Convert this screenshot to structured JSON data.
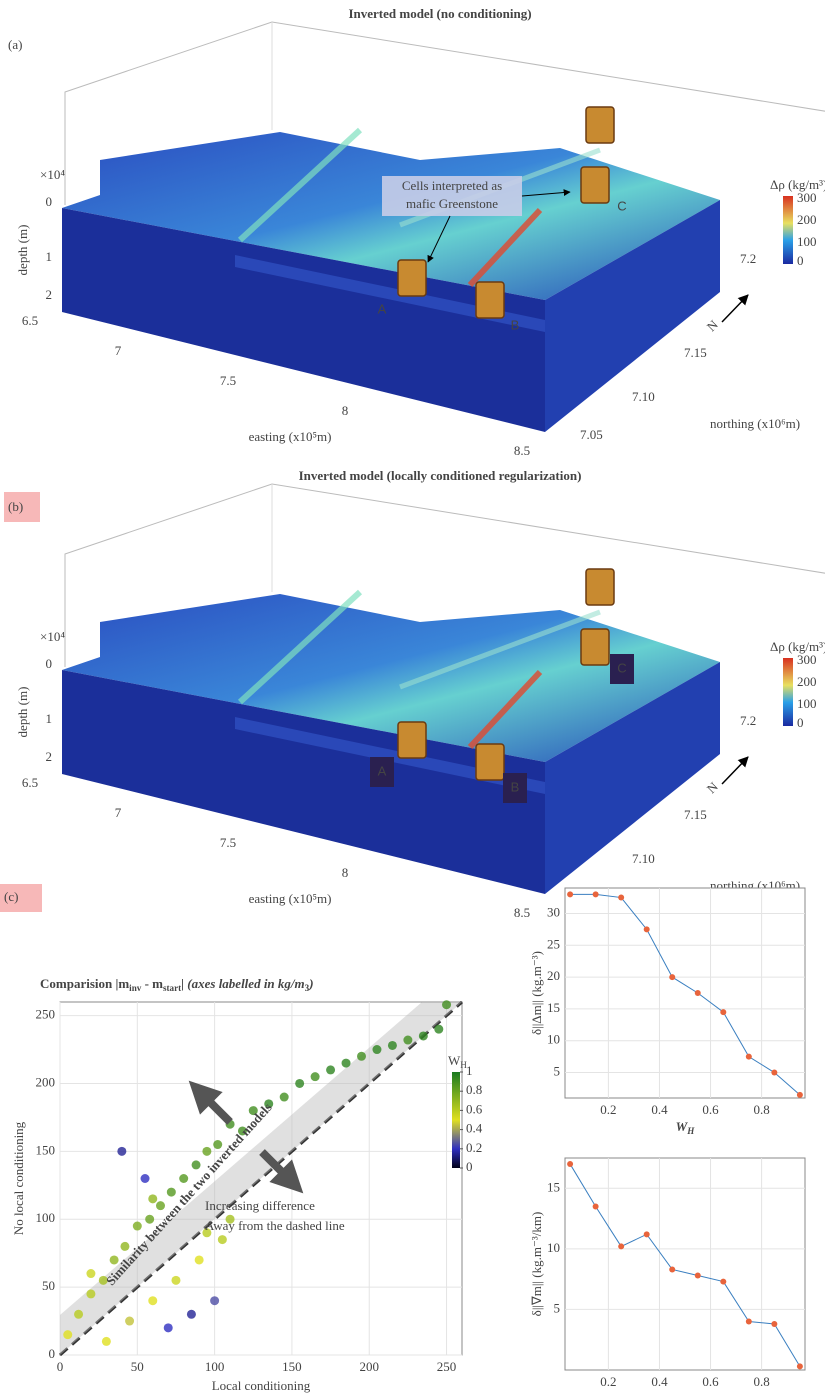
{
  "model_panels": [
    {
      "label": "(a)",
      "label_highlight": false,
      "title": "Inverted model (no conditioning)",
      "exponent": "×10⁴",
      "depth_label": "depth (m)",
      "depth_ticks": [
        "0",
        "1",
        "2"
      ],
      "easting_label": "easting (x10⁵m)",
      "easting_ticks": [
        "6.5",
        "7",
        "7.5",
        "8",
        "8.5"
      ],
      "northing_label": "northing (x10⁶m)",
      "northing_ticks": [
        "7.05",
        "7.10",
        "7.15",
        "7.2"
      ],
      "colorbar_label": "Δρ (kg/m³)",
      "colorbar_ticks": [
        "300",
        "200",
        "100",
        "0"
      ],
      "points": [
        "A",
        "B",
        "C"
      ],
      "letter_box": false,
      "north": "N",
      "annotation": [
        "Cells interpreted as",
        "mafic Greenstone"
      ]
    },
    {
      "label": "(b)",
      "label_highlight": true,
      "title": "Inverted model (locally conditioned regularization)",
      "exponent": "×10⁴",
      "depth_label": "depth (m)",
      "depth_ticks": [
        "0",
        "1",
        "2"
      ],
      "easting_label": "easting (x10⁵m)",
      "easting_ticks": [
        "6.5",
        "7",
        "7.5",
        "8",
        "8.5"
      ],
      "northing_label": "northing (x10⁶m)",
      "northing_ticks": [
        "7.05",
        "7.10",
        "7.15",
        "7.2"
      ],
      "colorbar_label": "Δρ (kg/m³)",
      "colorbar_ticks": [
        "300",
        "200",
        "100",
        "0"
      ],
      "points": [
        "A",
        "B",
        "C"
      ],
      "letter_box": true,
      "north": "N"
    }
  ],
  "chart_data": [
    {
      "type": "scatter",
      "label": "(c)",
      "label_highlight": true,
      "title_parts": [
        "Comparision  |m",
        "inv",
        " - m",
        "start",
        "|  (axes labelled in kg/m",
        "3",
        ")"
      ],
      "xlabel": "Local conditioning",
      "ylabel": "No local conditioning",
      "x": [
        5,
        12,
        20,
        28,
        35,
        42,
        50,
        58,
        65,
        72,
        80,
        88,
        95,
        102,
        110,
        118,
        125,
        135,
        145,
        155,
        165,
        175,
        185,
        195,
        205,
        215,
        225,
        235,
        245,
        30,
        45,
        60,
        75,
        90,
        105,
        40,
        55,
        70,
        85,
        100,
        20,
        60,
        95,
        110,
        250
      ],
      "values": [
        15,
        30,
        45,
        55,
        70,
        80,
        95,
        100,
        110,
        120,
        130,
        140,
        150,
        155,
        170,
        165,
        180,
        185,
        190,
        200,
        205,
        210,
        215,
        220,
        225,
        228,
        232,
        235,
        240,
        10,
        25,
        40,
        55,
        70,
        85,
        150,
        130,
        20,
        30,
        40,
        60,
        115,
        90,
        100,
        258
      ],
      "color_values": [
        0.5,
        0.6,
        0.6,
        0.65,
        0.7,
        0.7,
        0.75,
        0.8,
        0.8,
        0.85,
        0.85,
        0.9,
        0.8,
        0.85,
        0.9,
        0.9,
        0.9,
        0.95,
        0.9,
        0.95,
        0.9,
        0.95,
        0.95,
        0.9,
        0.95,
        0.95,
        0.9,
        0.95,
        0.95,
        0.5,
        0.45,
        0.5,
        0.55,
        0.5,
        0.6,
        0.15,
        0.2,
        0.2,
        0.15,
        0.25,
        0.55,
        0.7,
        0.6,
        0.65,
        0.9
      ],
      "xlim": [
        0,
        260
      ],
      "ylim": [
        0,
        260
      ],
      "xticks": [
        0,
        50,
        100,
        150,
        200,
        250
      ],
      "yticks": [
        0,
        50,
        100,
        150,
        200,
        250
      ],
      "grid": true,
      "clim": [
        0,
        1
      ],
      "cticks": [
        0,
        0.2,
        0.4,
        0.6,
        0.8,
        1
      ],
      "colorbar_label": [
        "W",
        "H"
      ],
      "annotations": [
        "Similarity between the two inverted models",
        "Increasing difference",
        "Away from the dashed line"
      ]
    },
    {
      "type": "line",
      "label": "(d)",
      "label_highlight": true,
      "color": "#3a7fc0",
      "marker_color": "#e8643c",
      "ylabel": "δ||Δm|| (kg.m⁻³)",
      "xlabel": [
        "W",
        "H"
      ],
      "x": [
        0.05,
        0.15,
        0.25,
        0.35,
        0.45,
        0.55,
        0.65,
        0.75,
        0.85,
        0.95
      ],
      "values": [
        33,
        33,
        32.5,
        27.5,
        20,
        17.5,
        14.5,
        7.5,
        5,
        1.5
      ],
      "xlim": [
        0.03,
        0.97
      ],
      "ylim": [
        1,
        34
      ],
      "xticks": [
        0.2,
        0.4,
        0.6,
        0.8
      ],
      "yticks": [
        5,
        10,
        15,
        20,
        25,
        30
      ],
      "grid": true
    },
    {
      "type": "line",
      "label": "(e)",
      "label_highlight": false,
      "color": "#3a7fc0",
      "marker_color": "#e8643c",
      "ylabel": "δ||∇m|| (kg.m⁻³/km)",
      "xlabel": [
        "W",
        "H"
      ],
      "x": [
        0.05,
        0.15,
        0.25,
        0.35,
        0.45,
        0.55,
        0.65,
        0.75,
        0.85,
        0.95
      ],
      "values": [
        17,
        13.5,
        10.2,
        11.2,
        8.3,
        7.8,
        7.3,
        4,
        3.8,
        0.3
      ],
      "xlim": [
        0.03,
        0.97
      ],
      "ylim": [
        0,
        17.5
      ],
      "xticks": [
        0.2,
        0.4,
        0.6,
        0.8
      ],
      "yticks": [
        5,
        10,
        15
      ],
      "grid": true
    }
  ]
}
